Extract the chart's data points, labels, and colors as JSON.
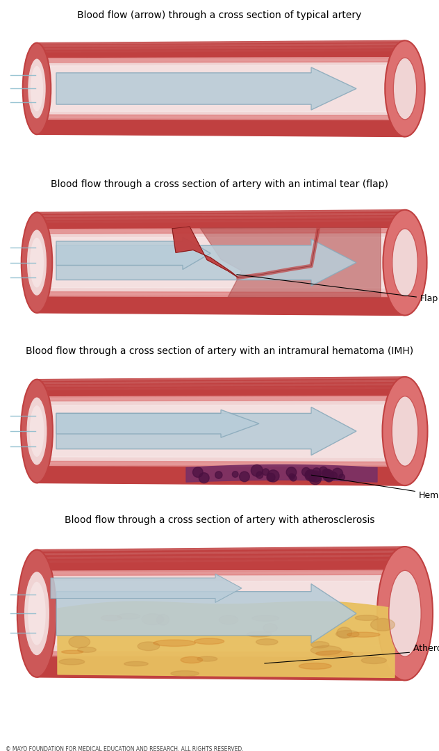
{
  "title1": "Blood flow (arrow) through a cross section of typical artery",
  "title2": "Blood flow through a cross section of artery with an intimal tear (flap)",
  "title3": "Blood flow through a cross section of artery with an intramural hematoma (IMH)",
  "title4": "Blood flow through a cross section of artery with atherosclerosis",
  "label_flap": "Flap",
  "label_hematoma": "Hematoma",
  "label_plaque": "Atherosclerotic plaque",
  "copyright": "© MAYO FOUNDATION FOR MEDICAL EDUCATION AND RESEARCH. ALL RIGHTS RESERVED.",
  "bg_color": "#ffffff",
  "artery_outer_color": "#c04040",
  "artery_wall_color": "#cc5858",
  "artery_inner_color": "#dd7070",
  "lumen_color": "#f0d4d4",
  "lumen_light_color": "#faf0f0",
  "arrow_color": "#b8ccd8",
  "arrow_edge_color": "#8aaabb",
  "hematoma_color": "#7a3065",
  "hematoma_spot_color": "#4a1040",
  "plaque_color": "#e8c060",
  "plaque_dark_color": "#c89040",
  "plaque_orange": "#d07820",
  "flow_line_color": "#88bbcc",
  "title_fontsize": 10,
  "label_fontsize": 9
}
